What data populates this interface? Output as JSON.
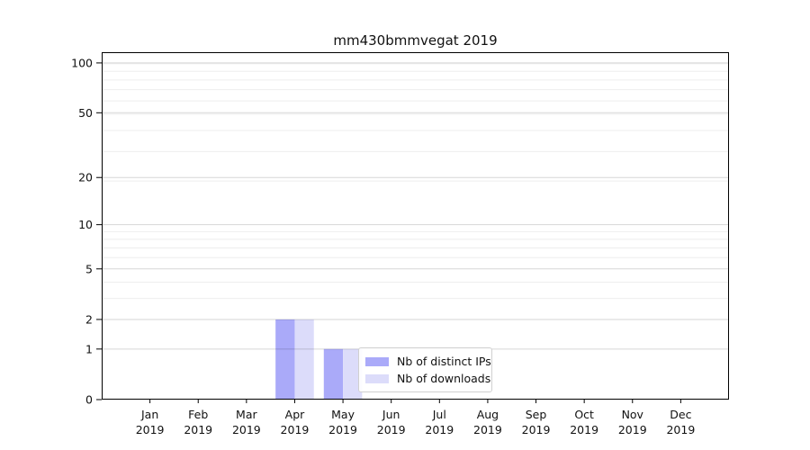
{
  "chart_data": {
    "type": "bar",
    "title": "mm430bmmvegat 2019",
    "x_months": [
      "Jan",
      "Feb",
      "Mar",
      "Apr",
      "May",
      "Jun",
      "Jul",
      "Aug",
      "Sep",
      "Oct",
      "Nov",
      "Dec"
    ],
    "x_year": "2019",
    "series": [
      {
        "name": "Nb of distinct IPs",
        "color": "#aaaaf9",
        "values": [
          0,
          0,
          0,
          2,
          1,
          0,
          0,
          0,
          0,
          0,
          0,
          0
        ]
      },
      {
        "name": "Nb of downloads",
        "color": "#dcdcfa",
        "values": [
          0,
          0,
          0,
          2,
          1,
          0,
          0,
          0,
          0,
          0,
          0,
          0
        ]
      }
    ],
    "y_ticks": [
      0,
      1,
      2,
      5,
      10,
      20,
      50,
      100
    ],
    "y_scale": "log1p",
    "ylim": [
      0,
      116
    ],
    "grid": true,
    "legend_position": "lower center inside plot"
  },
  "colors": {
    "background": "#ffffff",
    "axis": "#000000",
    "text": "#111111",
    "major_grid": "rgba(0,0,0,0.16)",
    "minor_grid": "#eeeeee",
    "legend_border": "#d0d0d0"
  }
}
